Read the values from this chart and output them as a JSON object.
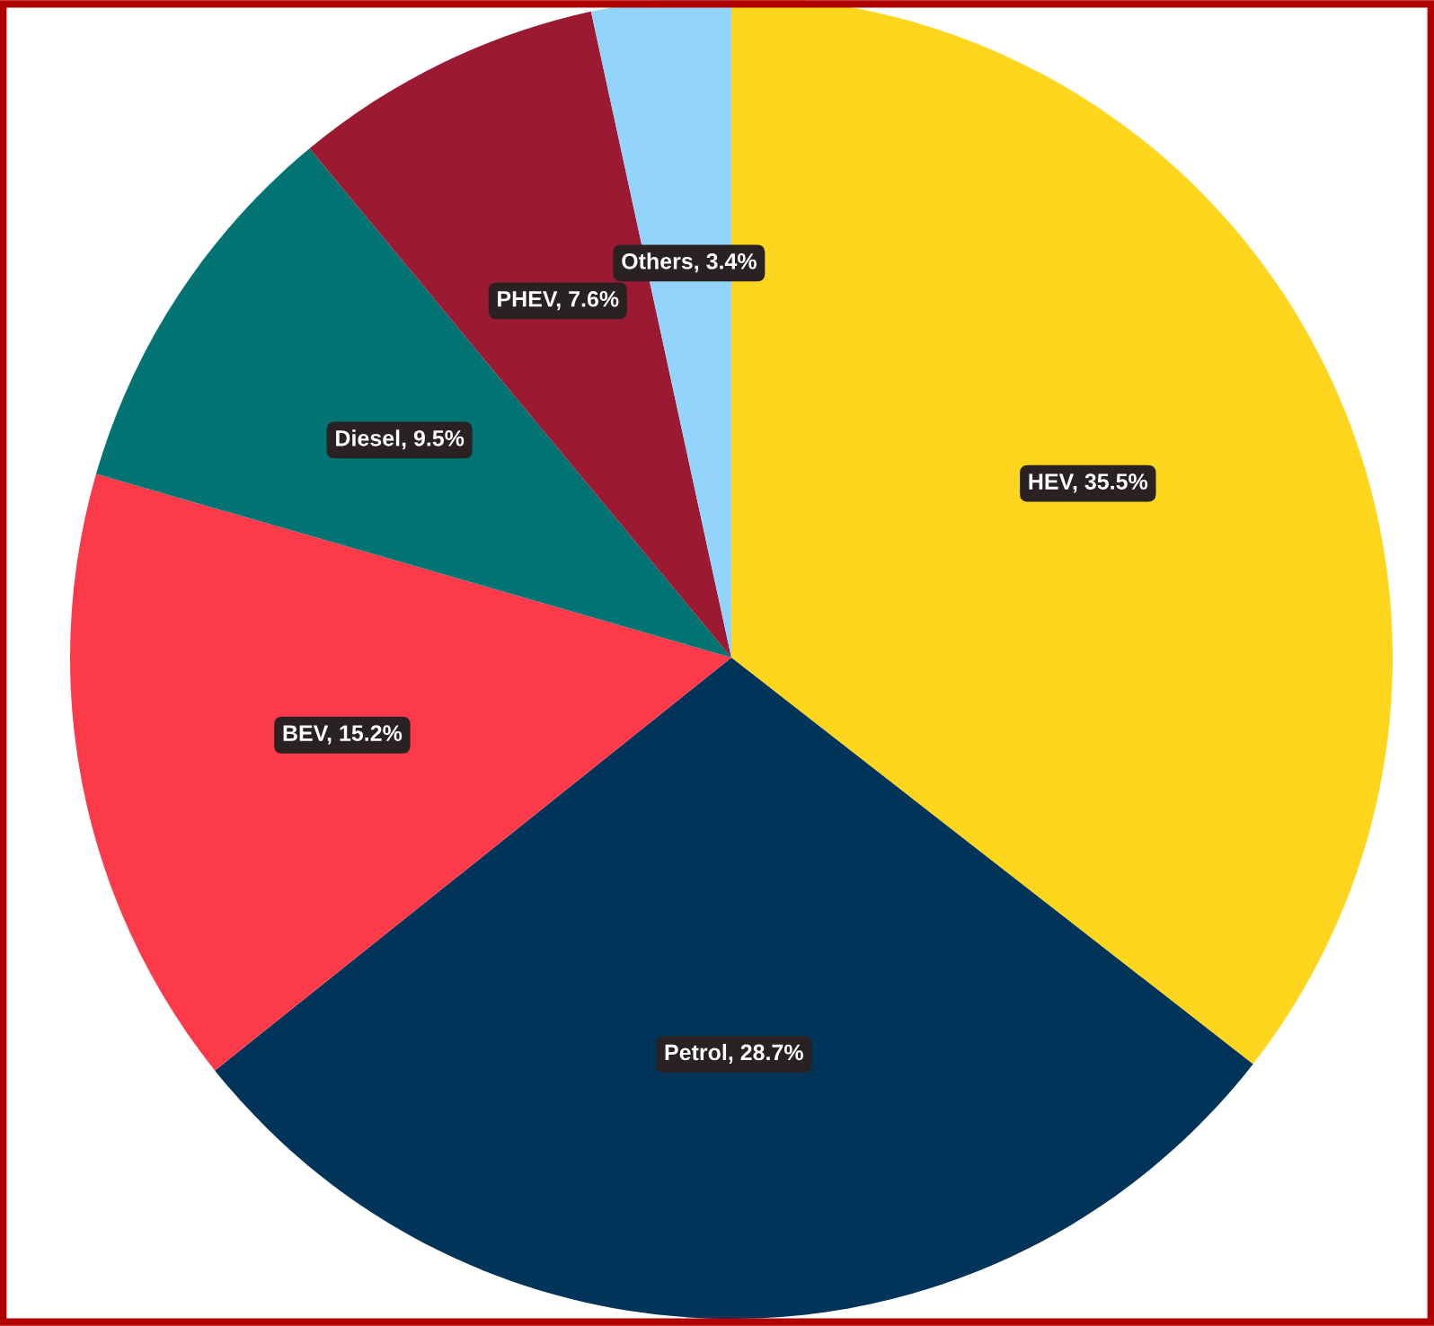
{
  "chart_data": {
    "type": "pie",
    "categories": [
      "HEV",
      "Petrol",
      "BEV",
      "Diesel",
      "PHEV",
      "Others"
    ],
    "values": [
      35.5,
      28.7,
      15.2,
      9.5,
      7.6,
      3.4
    ],
    "value_labels": [
      "35.5%",
      "28.7%",
      "15.2%",
      "9.5%",
      "7.6%",
      "3.4%"
    ],
    "colors": [
      "#fdd61d",
      "#003459",
      "#fd3a4a",
      "#027373",
      "#9b1a32",
      "#93d4fd"
    ]
  }
}
